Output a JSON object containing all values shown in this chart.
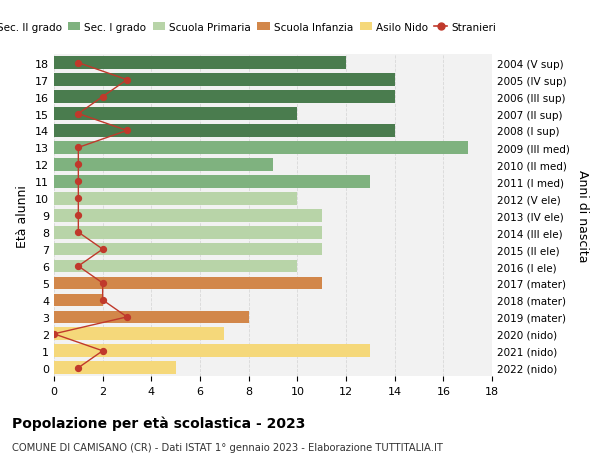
{
  "ages": [
    18,
    17,
    16,
    15,
    14,
    13,
    12,
    11,
    10,
    9,
    8,
    7,
    6,
    5,
    4,
    3,
    2,
    1,
    0
  ],
  "years": [
    "2004 (V sup)",
    "2005 (IV sup)",
    "2006 (III sup)",
    "2007 (II sup)",
    "2008 (I sup)",
    "2009 (III med)",
    "2010 (II med)",
    "2011 (I med)",
    "2012 (V ele)",
    "2013 (IV ele)",
    "2014 (III ele)",
    "2015 (II ele)",
    "2016 (I ele)",
    "2017 (mater)",
    "2018 (mater)",
    "2019 (mater)",
    "2020 (nido)",
    "2021 (nido)",
    "2022 (nido)"
  ],
  "values": [
    12,
    14,
    14,
    10,
    14,
    17,
    9,
    13,
    10,
    11,
    11,
    11,
    10,
    11,
    2,
    8,
    7,
    13,
    5
  ],
  "bar_colors": [
    "#4a7c4e",
    "#4a7c4e",
    "#4a7c4e",
    "#4a7c4e",
    "#4a7c4e",
    "#7fb27f",
    "#7fb27f",
    "#7fb27f",
    "#b8d4a8",
    "#b8d4a8",
    "#b8d4a8",
    "#b8d4a8",
    "#b8d4a8",
    "#d2874a",
    "#d2874a",
    "#d2874a",
    "#f5d87a",
    "#f5d87a",
    "#f5d87a"
  ],
  "stranieri": [
    1,
    3,
    2,
    1,
    3,
    1,
    1,
    1,
    1,
    1,
    1,
    2,
    1,
    2,
    2,
    3,
    0,
    2,
    1
  ],
  "stranieri_color": "#c0392b",
  "legend_labels": [
    "Sec. II grado",
    "Sec. I grado",
    "Scuola Primaria",
    "Scuola Infanzia",
    "Asilo Nido",
    "Stranieri"
  ],
  "legend_colors": [
    "#4a7c4e",
    "#7fb27f",
    "#b8d4a8",
    "#d2874a",
    "#f5d87a",
    "#c0392b"
  ],
  "ylabel_left": "Età alunni",
  "ylabel_right": "Anni di nascita",
  "xlim": [
    0,
    18
  ],
  "title": "Popolazione per età scolastica - 2023",
  "subtitle": "COMUNE DI CAMISANO (CR) - Dati ISTAT 1° gennaio 2023 - Elaborazione TUTTITALIA.IT",
  "bg_color": "#ffffff",
  "bar_bg_color": "#f2f2f2",
  "grid_color": "#d8d8d8"
}
